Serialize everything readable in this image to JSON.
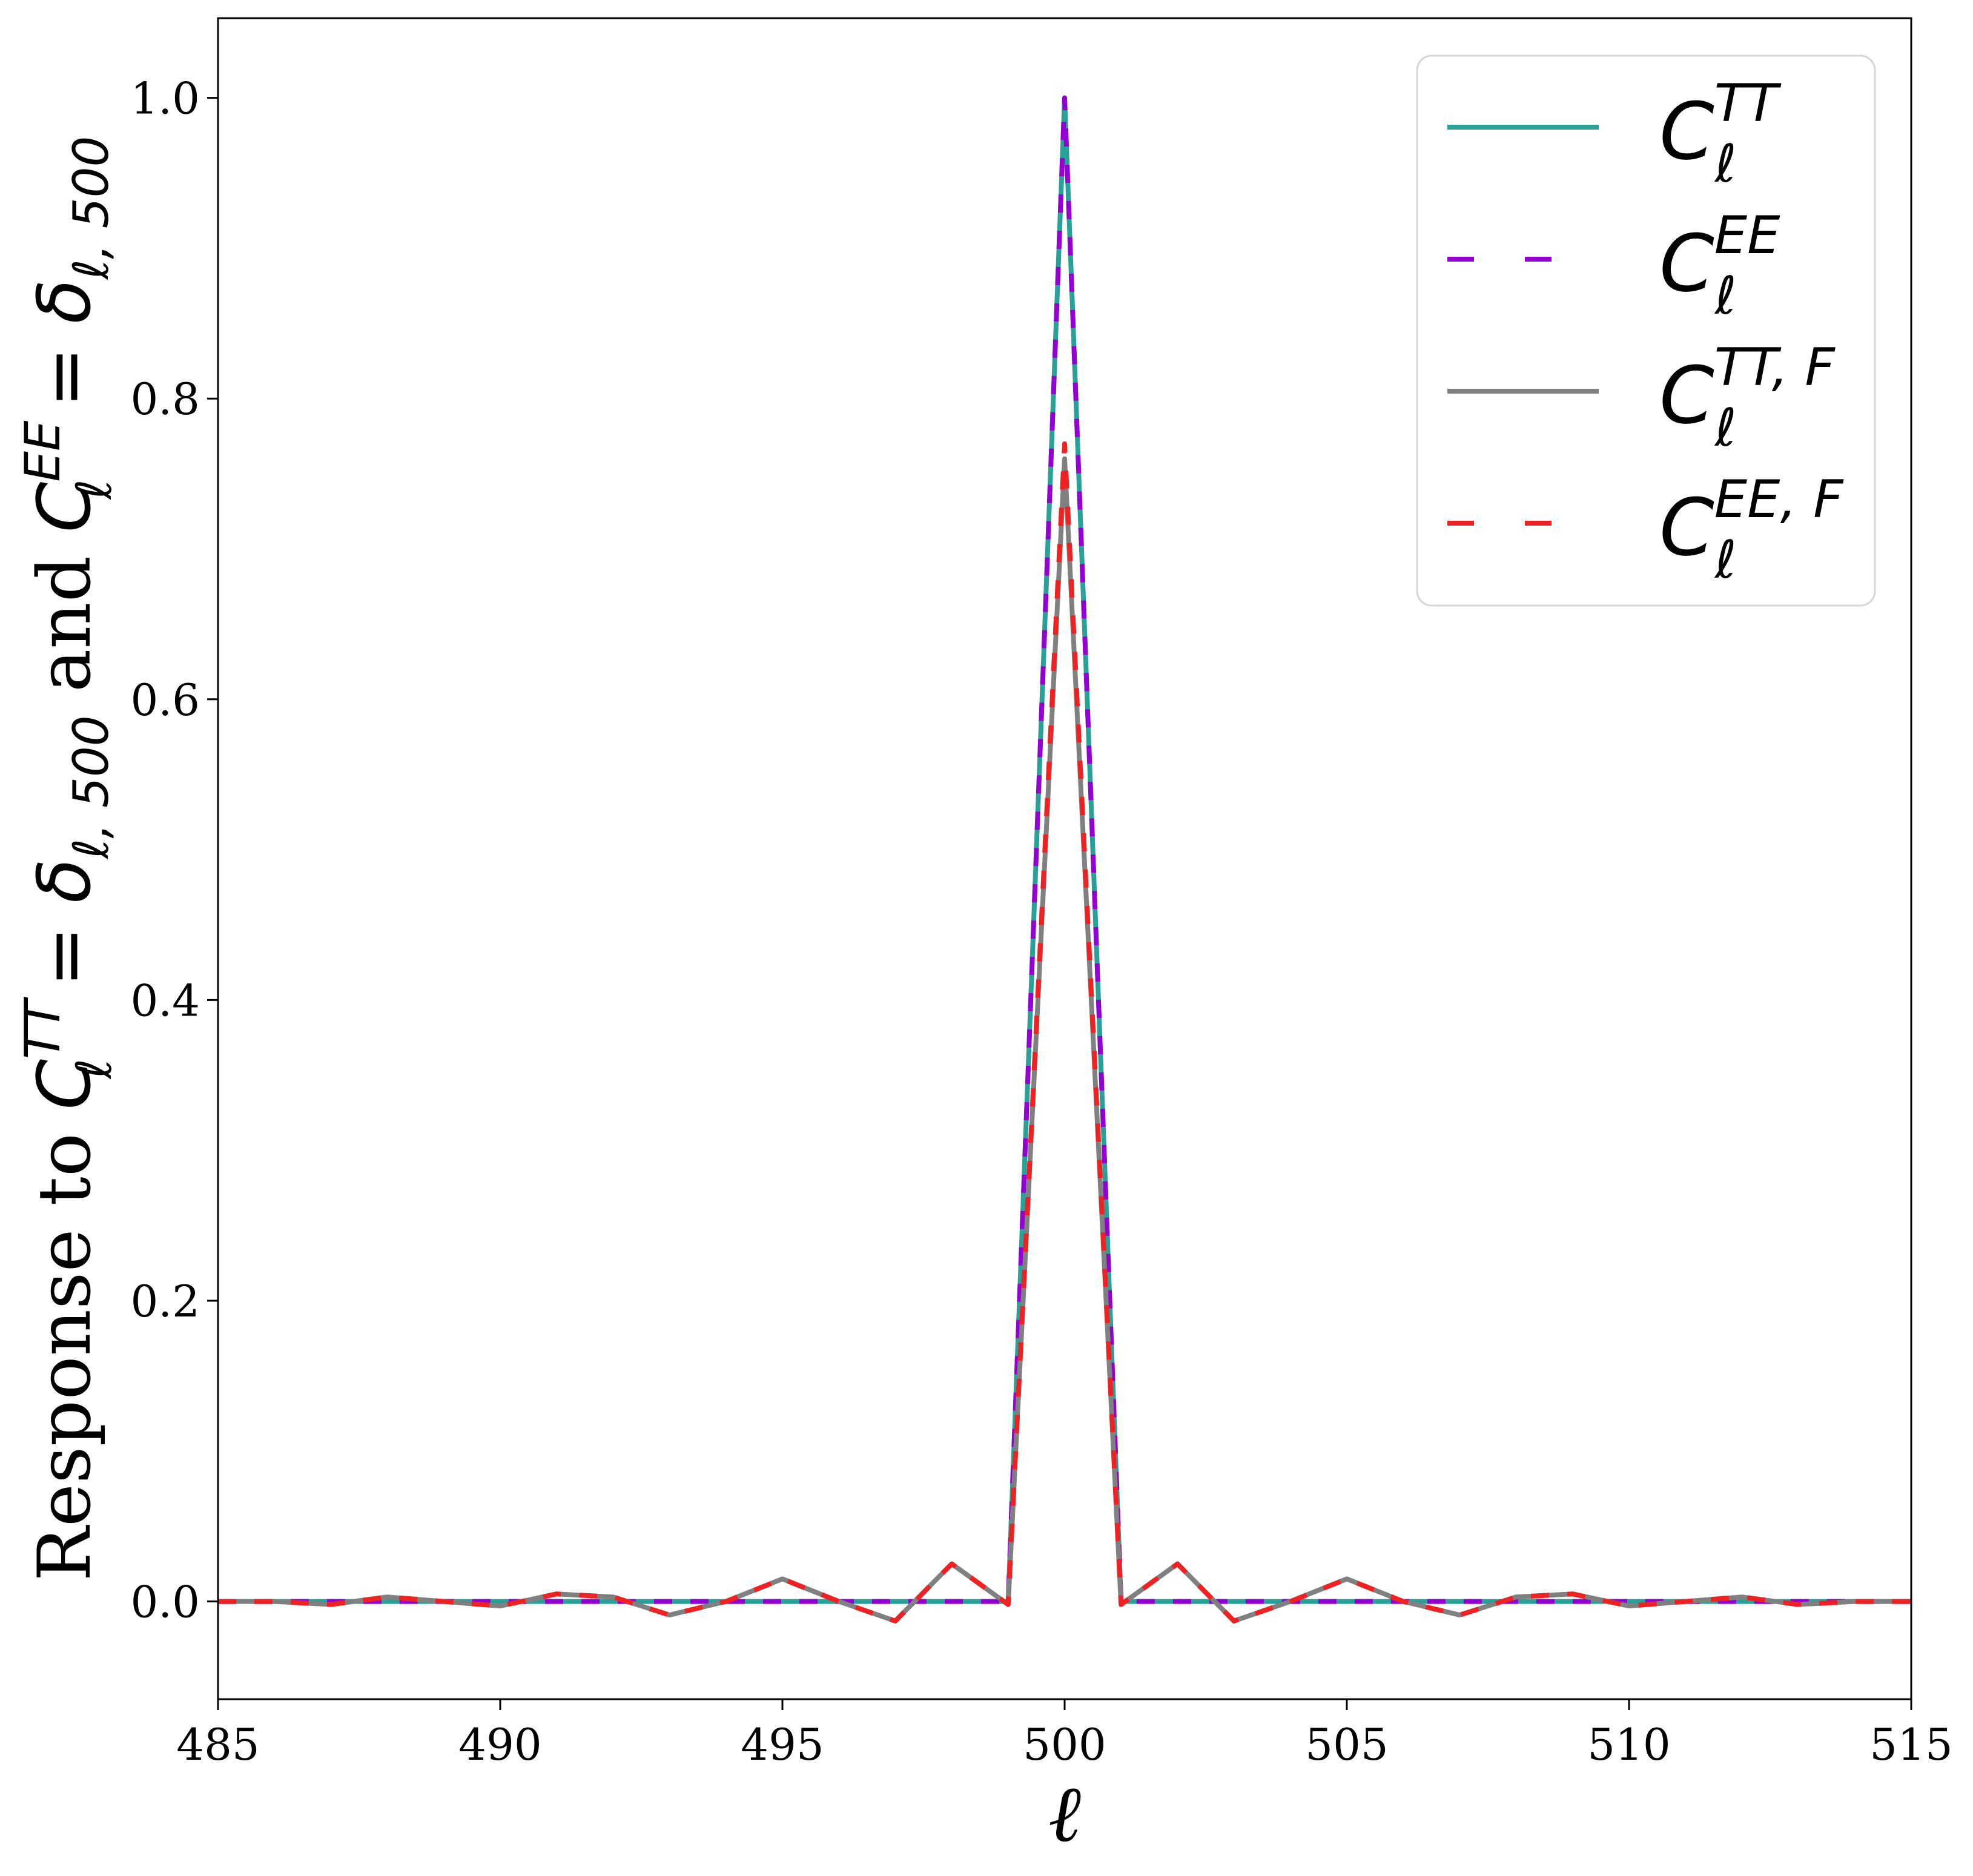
{
  "chart_data": {
    "type": "line",
    "xlabel": "ℓ",
    "ylabel": {
      "prefix": "Response to ",
      "sym1": "C",
      "sup1": "TT",
      "sub1": "ℓ",
      "eq1": " = δ",
      "delta_sub1": "ℓ, 500",
      "mid": " and ",
      "sym2": "C",
      "sup2": "EE",
      "sub2": "ℓ",
      "eq2": " = δ",
      "delta_sub2": "ℓ, 500"
    },
    "xlim": [
      485,
      515
    ],
    "ylim": [
      -0.065,
      1.053
    ],
    "xticks": [
      485,
      490,
      495,
      500,
      505,
      510,
      515
    ],
    "yticks": [
      0.0,
      0.2,
      0.4,
      0.6,
      0.8,
      1.0
    ],
    "ytick_labels": [
      "0.0",
      "0.2",
      "0.4",
      "0.6",
      "0.8",
      "1.0"
    ],
    "grid": false,
    "legend_position": "top-right",
    "x": [
      485,
      486,
      487,
      488,
      489,
      490,
      491,
      492,
      493,
      494,
      495,
      496,
      497,
      498,
      499,
      500,
      501,
      502,
      503,
      504,
      505,
      506,
      507,
      508,
      509,
      510,
      511,
      512,
      513,
      514,
      515
    ],
    "series": [
      {
        "name": "TT",
        "legend": {
          "sym": "C",
          "sup": "TT",
          "sub": "ℓ"
        },
        "color": "#2aa198",
        "dash": "solid",
        "values": [
          0,
          0,
          0,
          0,
          0,
          0,
          0,
          0,
          0,
          0,
          0,
          0,
          0,
          0,
          0,
          1.0,
          0,
          0,
          0,
          0,
          0,
          0,
          0,
          0,
          0,
          0,
          0,
          0,
          0,
          0,
          0
        ]
      },
      {
        "name": "EE",
        "legend": {
          "sym": "C",
          "sup": "EE",
          "sub": "ℓ"
        },
        "color": "#9400d3",
        "dash": "dashed",
        "values": [
          0,
          0,
          0,
          0,
          0,
          0,
          0,
          0,
          0,
          0,
          0,
          0,
          0,
          0,
          0,
          1.0,
          0,
          0,
          0,
          0,
          0,
          0,
          0,
          0,
          0,
          0,
          0,
          0,
          0,
          0,
          0
        ]
      },
      {
        "name": "TT,F",
        "legend": {
          "sym": "C",
          "sup": "TT, F",
          "sub": "ℓ"
        },
        "color": "#808080",
        "dash": "solid",
        "values": [
          0,
          0,
          -0.002,
          0.003,
          0,
          -0.003,
          0.005,
          0.003,
          -0.009,
          0,
          0.015,
          0,
          -0.013,
          0.025,
          -0.002,
          0.76,
          -0.002,
          0.025,
          -0.013,
          0,
          0.015,
          0,
          -0.009,
          0.003,
          0.005,
          -0.003,
          0,
          0.003,
          -0.002,
          0,
          0
        ]
      },
      {
        "name": "EE,F",
        "legend": {
          "sym": "C",
          "sup": "EE, F",
          "sub": "ℓ"
        },
        "color": "#ee2222",
        "dash": "dashed",
        "values": [
          0,
          0,
          -0.002,
          0.003,
          0,
          -0.003,
          0.005,
          0.003,
          -0.009,
          0,
          0.015,
          0,
          -0.013,
          0.025,
          -0.002,
          0.77,
          -0.002,
          0.025,
          -0.013,
          0,
          0.015,
          0,
          -0.009,
          0.003,
          0.005,
          -0.003,
          0,
          0.003,
          -0.002,
          0,
          0
        ]
      }
    ]
  }
}
